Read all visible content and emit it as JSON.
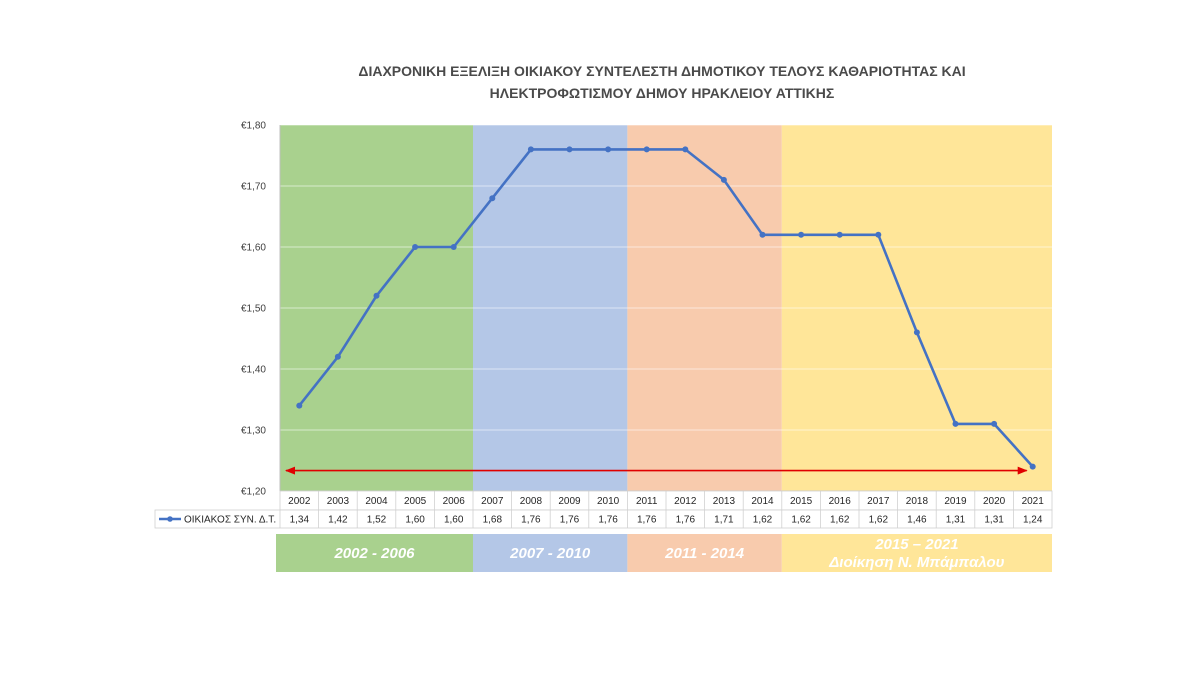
{
  "chart_data": {
    "type": "line",
    "title_lines": [
      "ΔΙΑΧΡΟΝΙΚΗ ΕΞΕΛΙΞΗ ΟΙΚΙΑΚΟΥ ΣΥΝΤΕΛΕΣΤΗ ΔΗΜΟΤΙΚΟΥ ΤΕΛΟΥΣ ΚΑΘΑΡΙΟΤΗΤΑΣ ΚΑΙ",
      "ΗΛΕΚΤΡΟΦΩΤΙΣΜΟΥ ΔΗΜΟΥ ΗΡΑΚΛΕΙΟΥ ΑΤΤΙΚΗΣ"
    ],
    "categories": [
      "2002",
      "2003",
      "2004",
      "2005",
      "2006",
      "2007",
      "2008",
      "2009",
      "2010",
      "2011",
      "2012",
      "2013",
      "2014",
      "2015",
      "2016",
      "2017",
      "2018",
      "2019",
      "2020",
      "2021"
    ],
    "series": [
      {
        "name": "ΟΙΚΙΑΚΟΣ ΣΥΝ. Δ.Τ.",
        "values": [
          1.34,
          1.42,
          1.52,
          1.6,
          1.6,
          1.68,
          1.76,
          1.76,
          1.76,
          1.76,
          1.76,
          1.71,
          1.62,
          1.62,
          1.62,
          1.62,
          1.46,
          1.31,
          1.31,
          1.24
        ],
        "value_labels": [
          "1,34",
          "1,42",
          "1,52",
          "1,60",
          "1,60",
          "1,68",
          "1,76",
          "1,76",
          "1,76",
          "1,76",
          "1,76",
          "1,71",
          "1,62",
          "1,62",
          "1,62",
          "1,62",
          "1,46",
          "1,31",
          "1,31",
          "1,24"
        ],
        "color": "#4472c4"
      }
    ],
    "ylim": [
      1.2,
      1.8
    ],
    "yticks": [
      1.2,
      1.3,
      1.4,
      1.5,
      1.6,
      1.7,
      1.8
    ],
    "ytick_labels": [
      "€1,20",
      "€1,30",
      "€1,40",
      "€1,50",
      "€1,60",
      "€1,70",
      "€1,80"
    ],
    "grid": true,
    "legend": "data-table",
    "periods": [
      {
        "start": "2002",
        "end": "2006",
        "label_lines": [
          "2002 - 2006"
        ],
        "color": "#a9d18e"
      },
      {
        "start": "2007",
        "end": "2010",
        "label_lines": [
          "2007 - 2010"
        ],
        "color": "#b4c7e7"
      },
      {
        "start": "2011",
        "end": "2014",
        "label_lines": [
          "2011 - 2014"
        ],
        "color": "#f8cbad"
      },
      {
        "start": "2015",
        "end": "2021",
        "label_lines": [
          "2015 – 2021",
          "Διοίκηση Ν. Μπάμπαλου"
        ],
        "color": "#ffe699"
      }
    ],
    "reference_arrow": {
      "value": 1.24,
      "from": "2002",
      "to": "2021",
      "color": "#e00000",
      "style": "double-headed"
    }
  }
}
